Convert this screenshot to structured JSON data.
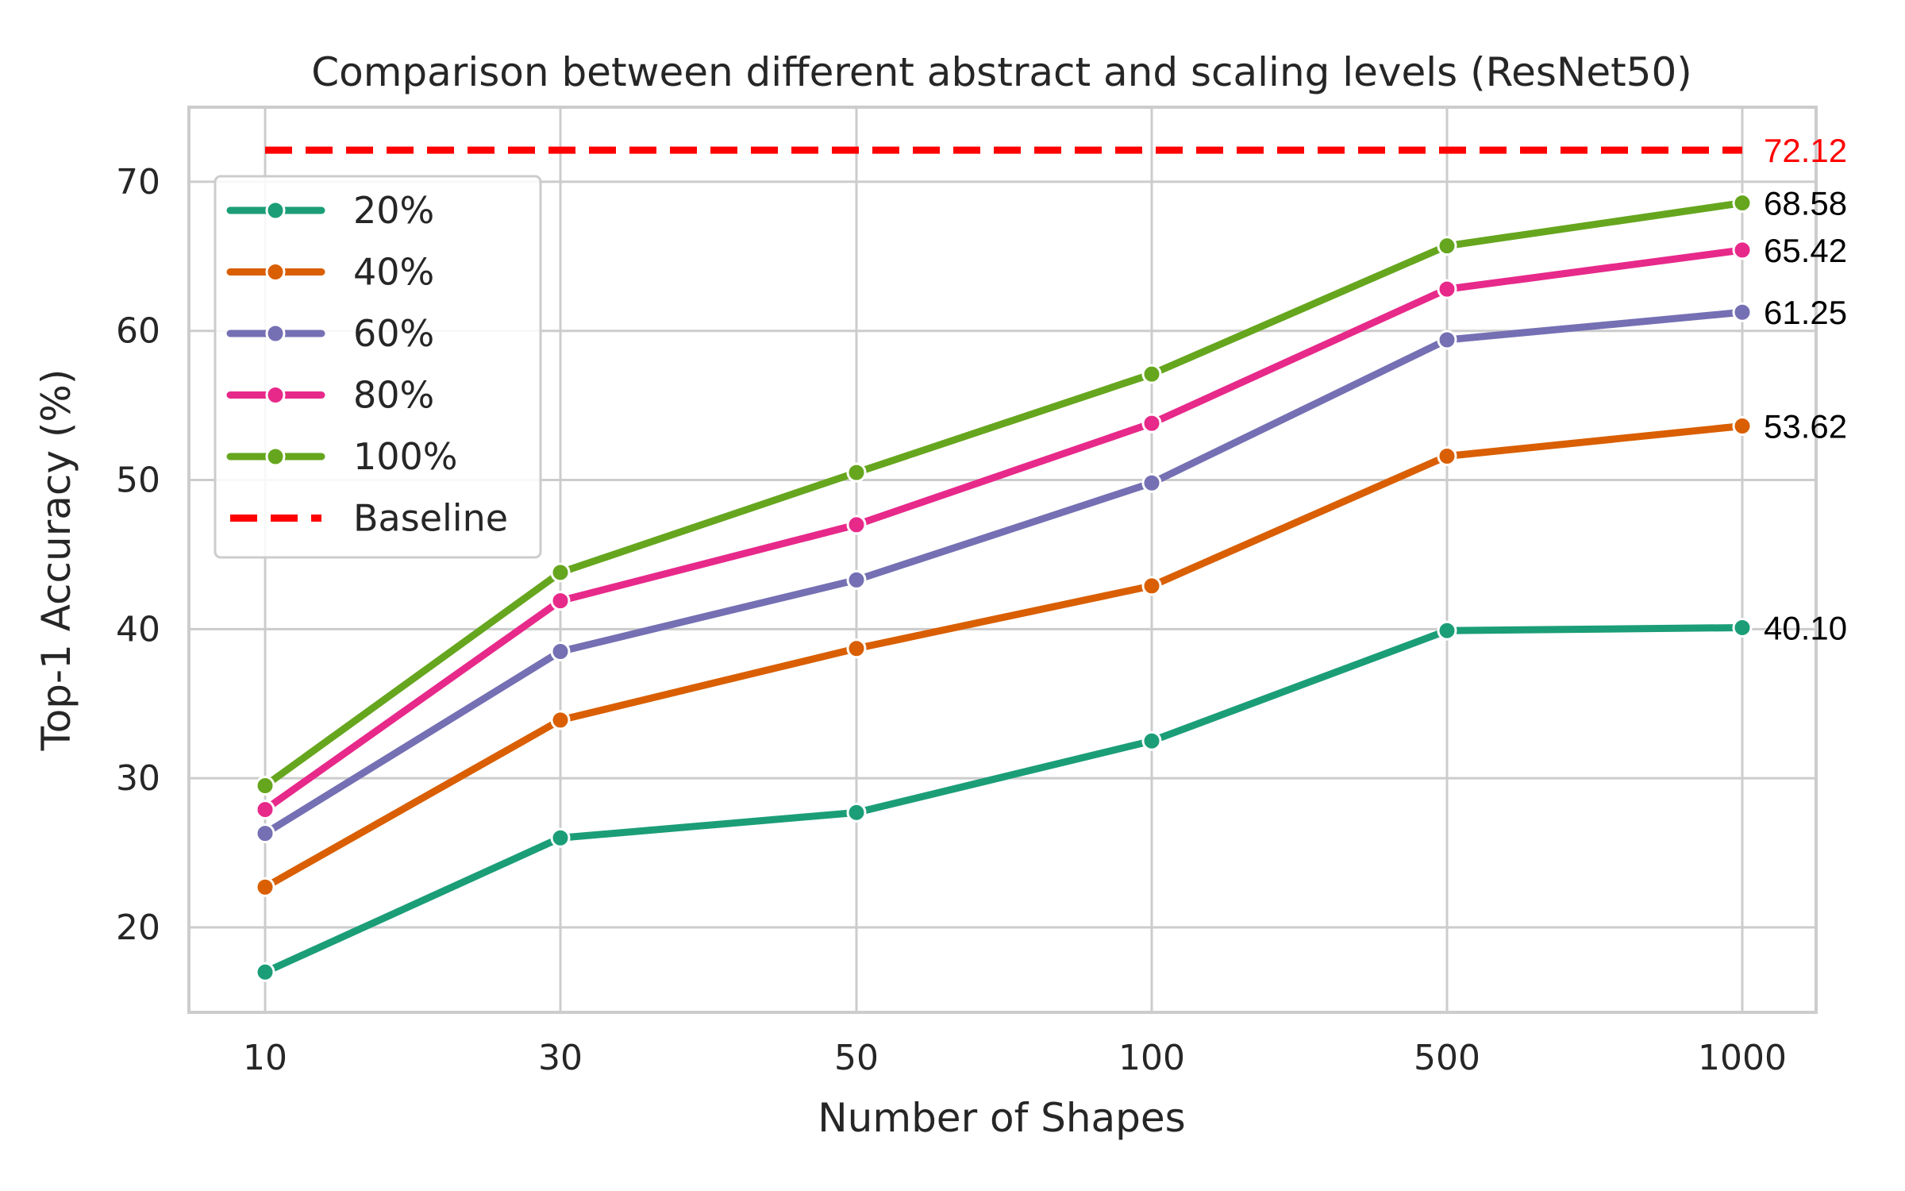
{
  "chart_data": {
    "type": "line",
    "title": "Comparison between different abstract and scaling levels (ResNet50)",
    "xlabel": "Number of Shapes",
    "ylabel": "Top-1 Accuracy (%)",
    "categories": [
      "10",
      "30",
      "50",
      "100",
      "500",
      "1000"
    ],
    "ylim": [
      14.3,
      75
    ],
    "yticks": [
      20,
      30,
      40,
      50,
      60,
      70
    ],
    "grid": true,
    "legend_position": "upper-left",
    "series": [
      {
        "name": "20%",
        "color": "#1b9e77",
        "values": [
          17.0,
          26.0,
          27.7,
          32.5,
          39.9,
          40.1
        ],
        "end_label": "40.10"
      },
      {
        "name": "40%",
        "color": "#d95f02",
        "values": [
          22.7,
          33.9,
          38.7,
          42.9,
          51.6,
          53.62
        ],
        "end_label": "53.62"
      },
      {
        "name": "60%",
        "color": "#7570b3",
        "values": [
          26.3,
          38.5,
          43.3,
          49.8,
          59.4,
          61.25
        ],
        "end_label": "61.25"
      },
      {
        "name": "80%",
        "color": "#e7298a",
        "values": [
          27.9,
          41.9,
          47.0,
          53.8,
          62.8,
          65.42
        ],
        "end_label": "65.42"
      },
      {
        "name": "100%",
        "color": "#66a61e",
        "values": [
          29.5,
          43.8,
          50.5,
          57.1,
          65.7,
          68.58
        ],
        "end_label": "68.58"
      }
    ],
    "baseline": {
      "name": "Baseline",
      "value": 72.12,
      "color": "#ff0000",
      "label": "72.12"
    }
  }
}
